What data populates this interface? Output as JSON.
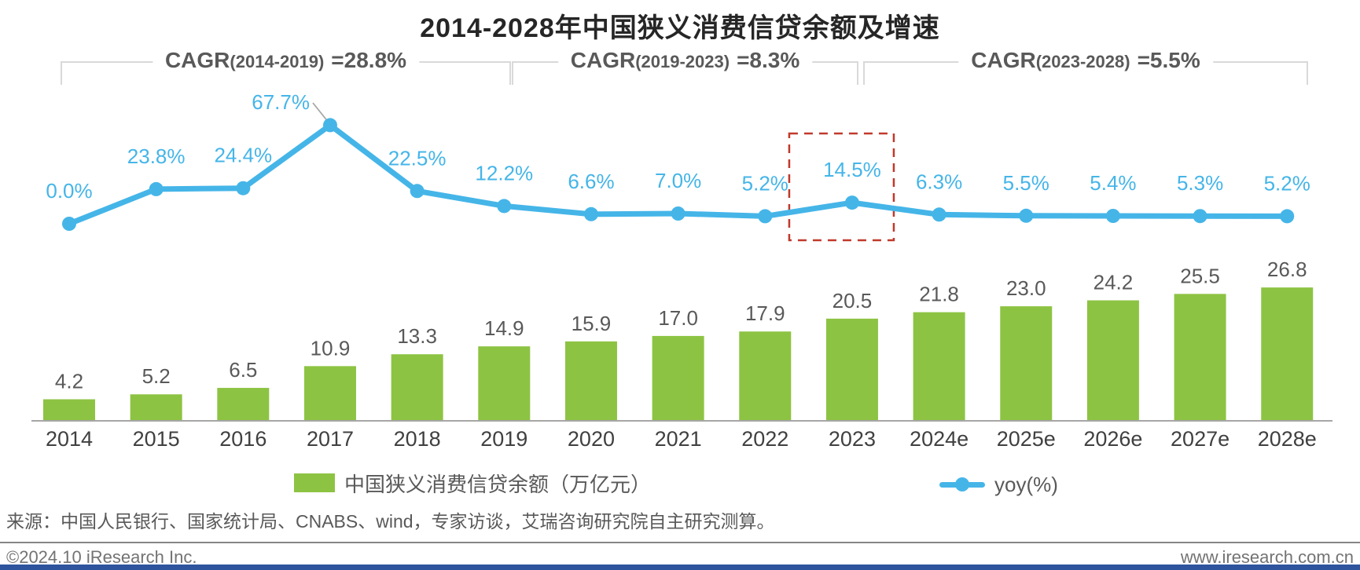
{
  "title": "2014-2028年中国狭义消费信贷余额及增速",
  "cagr_annotations": [
    {
      "prefix": "CAGR",
      "range": "(2014-2019)",
      "value": "=28.8%"
    },
    {
      "prefix": "CAGR",
      "range": "(2019-2023)",
      "value": "=8.3%"
    },
    {
      "prefix": "CAGR",
      "range": "(2023-2028)",
      "value": "=5.5%"
    }
  ],
  "chart_data": {
    "type": "combo-bar-line",
    "categories": [
      "2014",
      "2015",
      "2016",
      "2017",
      "2018",
      "2019",
      "2020",
      "2021",
      "2022",
      "2023",
      "2024e",
      "2025e",
      "2026e",
      "2027e",
      "2028e"
    ],
    "series": [
      {
        "name": "中国狭义消费信贷余额（万亿元）",
        "type": "bar",
        "color": "#8dc343",
        "values": [
          4.2,
          5.2,
          6.5,
          10.9,
          13.3,
          14.9,
          15.9,
          17.0,
          17.9,
          20.5,
          21.8,
          23.0,
          24.2,
          25.5,
          26.8
        ],
        "labels": [
          "4.2",
          "5.2",
          "6.5",
          "10.9",
          "13.3",
          "14.9",
          "15.9",
          "17.0",
          "17.9",
          "20.5",
          "21.8",
          "23.0",
          "24.2",
          "25.5",
          "26.8"
        ]
      },
      {
        "name": "yoy(%)",
        "type": "line",
        "color": "#45b5e8",
        "values": [
          0.0,
          23.8,
          24.4,
          67.7,
          22.5,
          12.2,
          6.6,
          7.0,
          5.2,
          14.5,
          6.3,
          5.5,
          5.4,
          5.3,
          5.2
        ],
        "labels": [
          "0.0%",
          "23.8%",
          "24.4%",
          "67.7%",
          "22.5%",
          "12.2%",
          "6.6%",
          "7.0%",
          "5.2%",
          "14.5%",
          "6.3%",
          "5.5%",
          "5.4%",
          "5.3%",
          "5.2%"
        ]
      }
    ],
    "highlight": {
      "category": "2023",
      "series": "yoy(%)",
      "label": "14.5%",
      "style": "red-dashed-box"
    },
    "ylim_bar": [
      0,
      30
    ],
    "ylim_line": [
      0,
      75
    ],
    "grid": false,
    "legend_position": "bottom"
  },
  "legend": [
    {
      "label": "中国狭义消费信贷余额（万亿元）",
      "swatch": "green-bar-swatch",
      "color": "#8dc343"
    },
    {
      "label": "yoy(%)",
      "swatch": "blue-line-dot-swatch",
      "color": "#45b5e8"
    }
  ],
  "source_note": "来源：中国人民银行、国家统计局、CNABS、wind，专家访谈，艾瑞咨询研究院自主研究测算。",
  "footer": {
    "left": "©2024.10 iResearch Inc.",
    "right": "www.iresearch.com.cn"
  },
  "colors": {
    "bar": "#8dc343",
    "line": "#45b5e8",
    "highlight_box": "#c0392b",
    "bottom_strip": "#2e549e",
    "bracket": "#d9d9d9"
  }
}
